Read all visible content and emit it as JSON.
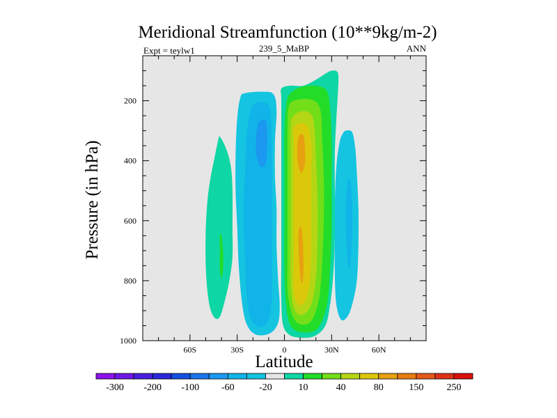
{
  "chart_data": {
    "type": "contour",
    "title": "Meridional Streamfunction (10**9kg/m-2)",
    "subtitle_left": "Expt = teylw1",
    "subtitle_center": "239_5_MaBP",
    "subtitle_right": "ANN",
    "xlabel": "Latitude",
    "ylabel": "Pressure (in hPa)",
    "xlim": [
      -90,
      90
    ],
    "ylim": [
      1000,
      50
    ],
    "x_ticks": [
      {
        "value": -60,
        "label": "60S"
      },
      {
        "value": -30,
        "label": "30S"
      },
      {
        "value": 0,
        "label": "0"
      },
      {
        "value": 30,
        "label": "30N"
      },
      {
        "value": 60,
        "label": "60N"
      }
    ],
    "y_ticks": [
      {
        "value": 200,
        "label": "200"
      },
      {
        "value": 400,
        "label": "400"
      },
      {
        "value": 600,
        "label": "600"
      },
      {
        "value": 800,
        "label": "800"
      },
      {
        "value": 1000,
        "label": "1000"
      }
    ],
    "background_color": "#e6e6e6",
    "colorbar": {
      "colors": [
        "#8c12ec",
        "#6e18e6",
        "#4a1ee0",
        "#2a28d8",
        "#1450e0",
        "#1c74ea",
        "#1c98f0",
        "#10b4e8",
        "#14c4e0",
        "#e6e6e6",
        "#0ed6a4",
        "#22dc28",
        "#72de1a",
        "#b4d614",
        "#dcc80a",
        "#e6a010",
        "#e67c10",
        "#e4581a",
        "#dc3218",
        "#d8120a"
      ],
      "labels": [
        "-300",
        "-200",
        "-100",
        "-60",
        "-20",
        "10",
        "40",
        "80",
        "150",
        "250"
      ]
    },
    "cells": [
      {
        "name": "southern-hemisphere-weak-positive-cell",
        "sign": "positive",
        "levels": [
          {
            "color": "#0ed6a4",
            "points": [
              [
                -41,
                320
              ],
              [
                -37,
                360
              ],
              [
                -34,
                420
              ],
              [
                -33,
                500
              ],
              [
                -33,
                620
              ],
              [
                -33,
                720
              ],
              [
                -35,
                800
              ],
              [
                -38,
                870
              ],
              [
                -41,
                920
              ],
              [
                -44,
                925
              ],
              [
                -47,
                895
              ],
              [
                -49,
                830
              ],
              [
                -50,
                740
              ],
              [
                -50,
                640
              ],
              [
                -49,
                540
              ],
              [
                -47,
                460
              ],
              [
                -44,
                380
              ],
              [
                -42,
                330
              ]
            ]
          },
          {
            "color": "#22dc28",
            "points": [
              [
                -40,
                650
              ],
              [
                -39,
                700
              ],
              [
                -39,
                760
              ],
              [
                -40,
                790
              ],
              [
                -41,
                760
              ],
              [
                -41,
                700
              ],
              [
                -41,
                650
              ]
            ]
          }
        ]
      },
      {
        "name": "southern-ferrel-negative-cell",
        "sign": "negative",
        "levels": [
          {
            "color": "#14c4e0",
            "points": [
              [
                -25,
                175
              ],
              [
                -14,
                170
              ],
              [
                -7,
                178
              ],
              [
                -5,
                230
              ],
              [
                -6,
                340
              ],
              [
                -6,
                450
              ],
              [
                -5,
                560
              ],
              [
                -5,
                680
              ],
              [
                -4,
                800
              ],
              [
                -3,
                880
              ],
              [
                -4,
                940
              ],
              [
                -9,
                975
              ],
              [
                -18,
                980
              ],
              [
                -24,
                945
              ],
              [
                -27,
                870
              ],
              [
                -29,
                750
              ],
              [
                -30,
                620
              ],
              [
                -31,
                500
              ],
              [
                -31,
                380
              ],
              [
                -30,
                260
              ],
              [
                -28,
                190
              ]
            ]
          },
          {
            "color": "#10b4e8",
            "points": [
              [
                -19,
                210
              ],
              [
                -13,
                205
              ],
              [
                -9,
                230
              ],
              [
                -8,
                330
              ],
              [
                -8,
                470
              ],
              [
                -8,
                620
              ],
              [
                -8,
                760
              ],
              [
                -8,
                860
              ],
              [
                -10,
                930
              ],
              [
                -15,
                955
              ],
              [
                -21,
                930
              ],
              [
                -24,
                850
              ],
              [
                -25,
                720
              ],
              [
                -26,
                580
              ],
              [
                -25,
                440
              ],
              [
                -24,
                320
              ],
              [
                -22,
                240
              ]
            ]
          },
          {
            "color": "#1c98f0",
            "points": [
              [
                -16,
                270
              ],
              [
                -12,
                265
              ],
              [
                -11,
                300
              ],
              [
                -11,
                360
              ],
              [
                -12,
                410
              ],
              [
                -15,
                420
              ],
              [
                -18,
                380
              ],
              [
                -18,
                320
              ],
              [
                -17,
                285
              ]
            ]
          }
        ]
      },
      {
        "name": "hadley-positive-cell",
        "sign": "positive",
        "levels": [
          {
            "color": "#0ed6a4",
            "points": [
              [
                -2,
                160
              ],
              [
                3,
                150
              ],
              [
                12,
                150
              ],
              [
                20,
                130
              ],
              [
                26,
                110
              ],
              [
                30,
                100
              ],
              [
                34,
                108
              ],
              [
                34,
                170
              ],
              [
                33,
                260
              ],
              [
                32,
                380
              ],
              [
                32,
                520
              ],
              [
                32,
                660
              ],
              [
                31,
                780
              ],
              [
                29,
                880
              ],
              [
                26,
                950
              ],
              [
                19,
                985
              ],
              [
                10,
                990
              ],
              [
                3,
                980
              ],
              [
                -1,
                945
              ],
              [
                -2,
                860
              ],
              [
                -2,
                720
              ],
              [
                -2,
                560
              ],
              [
                -2,
                400
              ],
              [
                -2,
                260
              ],
              [
                -2,
                190
              ]
            ]
          },
          {
            "color": "#22dc28",
            "points": [
              [
                3,
                180
              ],
              [
                10,
                155
              ],
              [
                20,
                150
              ],
              [
                27,
                168
              ],
              [
                29,
                230
              ],
              [
                30,
                340
              ],
              [
                30,
                480
              ],
              [
                30,
                620
              ],
              [
                29,
                760
              ],
              [
                27,
                880
              ],
              [
                21,
                960
              ],
              [
                11,
                972
              ],
              [
                4,
                950
              ],
              [
                1,
                880
              ],
              [
                0,
                760
              ],
              [
                0,
                600
              ],
              [
                0,
                440
              ],
              [
                0,
                300
              ],
              [
                1,
                220
              ]
            ]
          },
          {
            "color": "#72de1a",
            "points": [
              [
                3,
                215
              ],
              [
                10,
                195
              ],
              [
                19,
                200
              ],
              [
                23,
                235
              ],
              [
                24,
                330
              ],
              [
                25,
                460
              ],
              [
                25,
                600
              ],
              [
                24,
                740
              ],
              [
                22,
                860
              ],
              [
                17,
                935
              ],
              [
                10,
                945
              ],
              [
                5,
                915
              ],
              [
                2,
                830
              ],
              [
                2,
                700
              ],
              [
                2,
                560
              ],
              [
                2,
                420
              ],
              [
                2,
                300
              ]
            ]
          },
          {
            "color": "#b4d614",
            "points": [
              [
                5,
                255
              ],
              [
                11,
                235
              ],
              [
                17,
                245
              ],
              [
                19,
                290
              ],
              [
                20,
                390
              ],
              [
                21,
                520
              ],
              [
                21,
                660
              ],
              [
                20,
                790
              ],
              [
                17,
                880
              ],
              [
                11,
                915
              ],
              [
                6,
                890
              ],
              [
                4,
                800
              ],
              [
                4,
                660
              ],
              [
                4,
                520
              ],
              [
                4,
                390
              ],
              [
                4,
                300
              ]
            ]
          },
          {
            "color": "#dcc80a",
            "points": [
              [
                6,
                290
              ],
              [
                11,
                275
              ],
              [
                15,
                290
              ],
              [
                17,
                350
              ],
              [
                17,
                450
              ],
              [
                17,
                570
              ],
              [
                17,
                690
              ],
              [
                16,
                810
              ],
              [
                13,
                870
              ],
              [
                9,
                880
              ],
              [
                6,
                840
              ],
              [
                6,
                720
              ],
              [
                6,
                580
              ],
              [
                6,
                440
              ],
              [
                6,
                340
              ]
            ]
          },
          {
            "color": "#e6a010",
            "points": [
              [
                9,
                320
              ],
              [
                12,
                315
              ],
              [
                13,
                355
              ],
              [
                13,
                410
              ],
              [
                11,
                440
              ],
              [
                9,
                420
              ],
              [
                8,
                370
              ]
            ]
          },
          {
            "color": "#e6a010",
            "points": [
              [
                10,
                620
              ],
              [
                11,
                630
              ],
              [
                12,
                700
              ],
              [
                12,
                780
              ],
              [
                11,
                810
              ],
              [
                10,
                780
              ],
              [
                9,
                700
              ],
              [
                9,
                640
              ]
            ]
          }
        ]
      },
      {
        "name": "northern-ferrel-negative-cell",
        "sign": "negative",
        "levels": [
          {
            "color": "#14c4e0",
            "points": [
              [
                39,
                300
              ],
              [
                43,
                305
              ],
              [
                45,
                360
              ],
              [
                46,
                440
              ],
              [
                47,
                560
              ],
              [
                47,
                680
              ],
              [
                46,
                800
              ],
              [
                43,
                880
              ],
              [
                40,
                920
              ],
              [
                36,
                930
              ],
              [
                33,
                880
              ],
              [
                32,
                780
              ],
              [
                32,
                660
              ],
              [
                32,
                540
              ],
              [
                33,
                420
              ],
              [
                35,
                340
              ],
              [
                37,
                310
              ]
            ]
          },
          {
            "color": "#10b4e8",
            "points": [
              [
                41,
                460
              ],
              [
                42,
                470
              ],
              [
                43,
                540
              ],
              [
                43,
                640
              ],
              [
                42,
                730
              ],
              [
                41,
                760
              ],
              [
                40,
                720
              ],
              [
                39,
                620
              ],
              [
                39,
                540
              ],
              [
                40,
                480
              ]
            ]
          }
        ]
      }
    ]
  }
}
